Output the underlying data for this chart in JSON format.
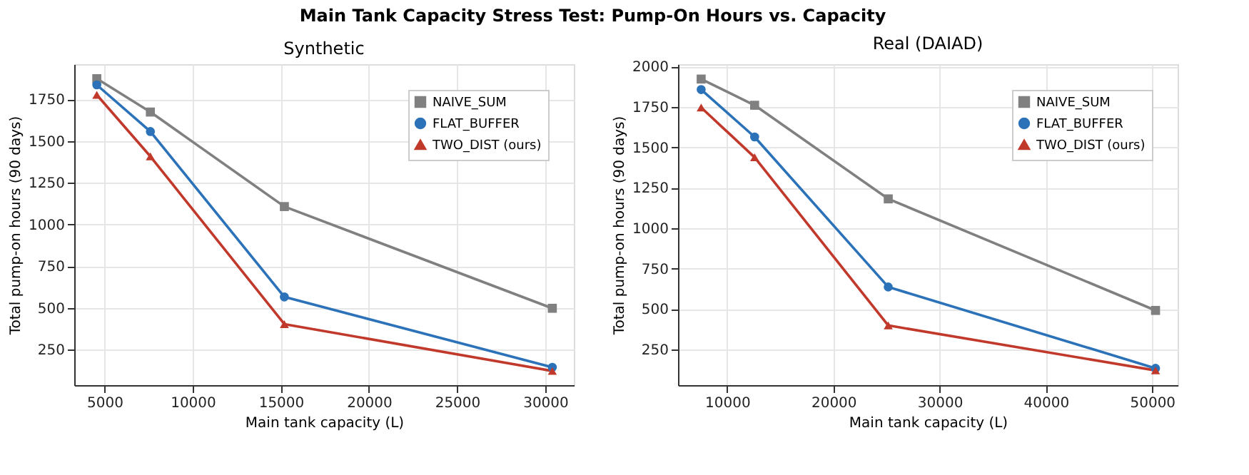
{
  "chart_data": [
    {
      "type": "line",
      "title": "Synthetic",
      "annotations": [
        "Main Tank Capacity Stress Test: Pump-On Hours vs. Capacity"
      ],
      "xlabel": "Main tank capacity (L)",
      "ylabel": "Total pump-on hours (90 days)",
      "xlim": [
        3280,
        31620
      ],
      "xticks": [
        5000,
        10000,
        15000,
        20000,
        25000,
        30000
      ],
      "ylim": [
        36,
        1961
      ],
      "yticks": [
        250,
        500,
        750,
        1000,
        1250,
        1500,
        1750
      ],
      "grid": true,
      "legend": "top right",
      "line_style": "solid",
      "series": [
        {
          "name": "NAIVE_SUM",
          "color": "#808080",
          "marker": "square",
          "x": [
            4560,
            7600,
            15200,
            30400
          ],
          "values": [
            1874,
            1674,
            1107,
            497
          ]
        },
        {
          "name": "FLAT_BUFFER",
          "color": "#2b72b8",
          "marker": "circle",
          "x": [
            4560,
            7600,
            15200,
            30400
          ],
          "values": [
            1837,
            1557,
            565,
            143
          ]
        },
        {
          "name": "TWO_DIST (ours)",
          "color": "#c0392b",
          "marker": "triangle",
          "x": [
            4560,
            7600,
            15200,
            30400
          ],
          "values": [
            1777,
            1408,
            402,
            121
          ]
        }
      ]
    },
    {
      "type": "line",
      "title": "Real (DAIAD)",
      "xlabel": "Main tank capacity (L)",
      "ylabel": "Total pump-on hours (90 days)",
      "xlim": [
        5370,
        52400
      ],
      "xticks": [
        10000,
        20000,
        30000,
        40000,
        50000
      ],
      "ylim": [
        29,
        2014
      ],
      "yticks": [
        250,
        500,
        750,
        1000,
        1250,
        1500,
        1750,
        2000
      ],
      "grid": true,
      "legend": "top right",
      "line_style": "solid",
      "series": [
        {
          "name": "NAIVE_SUM",
          "color": "#808080",
          "marker": "square",
          "x": [
            7548,
            12580,
            25160,
            50320
          ],
          "values": [
            1922,
            1760,
            1181,
            491
          ]
        },
        {
          "name": "FLAT_BUFFER",
          "color": "#2b72b8",
          "marker": "circle",
          "x": [
            7548,
            12580,
            25160,
            50320
          ],
          "values": [
            1857,
            1564,
            636,
            133
          ]
        },
        {
          "name": "TWO_DIST (ours)",
          "color": "#c0392b",
          "marker": "triangle",
          "x": [
            7548,
            12580,
            25160,
            50320
          ],
          "values": [
            1746,
            1438,
            398,
            120
          ]
        }
      ]
    }
  ]
}
